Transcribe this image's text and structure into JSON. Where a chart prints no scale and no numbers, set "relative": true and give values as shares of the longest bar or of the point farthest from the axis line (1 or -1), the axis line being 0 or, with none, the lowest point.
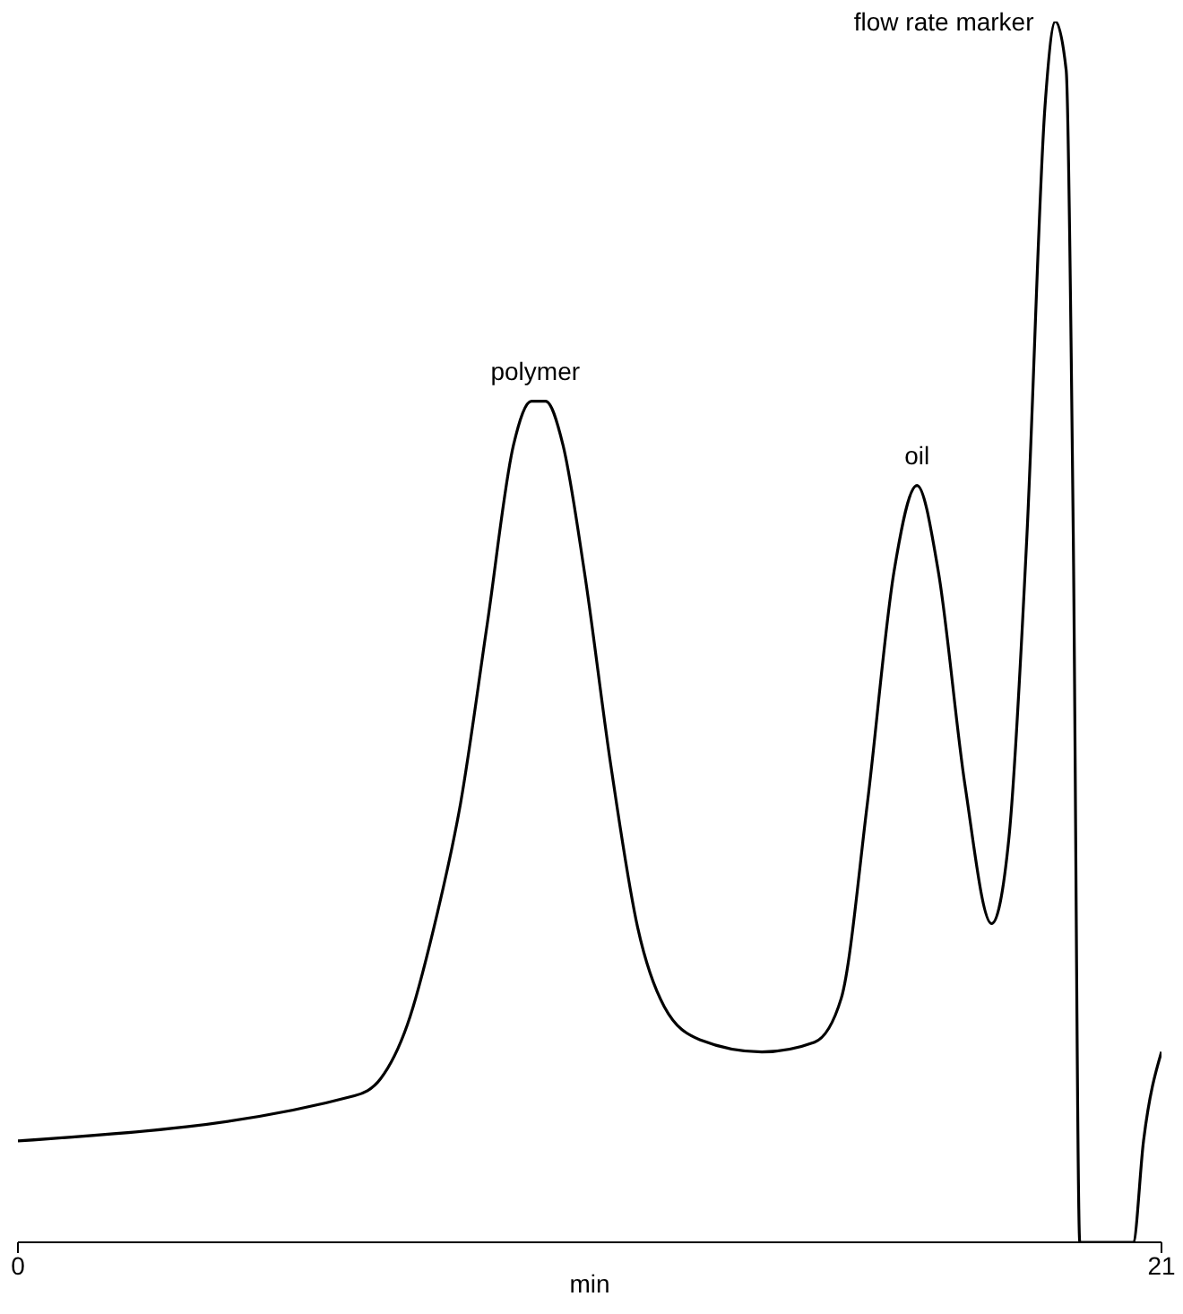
{
  "chart_data": {
    "type": "line",
    "relative": true,
    "xlabel": "min",
    "xlim": [
      0,
      21
    ],
    "xticks": [
      0,
      21
    ],
    "grid": false,
    "tick_labels": "x",
    "marker": "none",
    "color": "#000000",
    "x": [
      0,
      6.18,
      6.66,
      7.15,
      7.64,
      8.13,
      8.62,
      9.1,
      9.43,
      9.69,
      10.01,
      10.4,
      10.89,
      11.38,
      11.87,
      12.52,
      13.66,
      14.63,
      15.12,
      15.6,
      16.09,
      16.51,
      16.9,
      17.39,
      17.88,
      18.2,
      18.53,
      18.86,
      19.05,
      19.25,
      19.38,
      19.5,
      20.48,
      20.67,
      21
    ],
    "values": [
      0.083,
      0.12,
      0.134,
      0.178,
      0.258,
      0.36,
      0.507,
      0.653,
      0.689,
      0.689,
      0.653,
      0.55,
      0.39,
      0.258,
      0.193,
      0.166,
      0.156,
      0.164,
      0.2,
      0.36,
      0.55,
      0.62,
      0.55,
      0.375,
      0.261,
      0.332,
      0.58,
      0.93,
      1,
      0.96,
      0.58,
      0,
      0,
      0.083,
      0.156
    ],
    "annotations": [
      {
        "text": "polymer",
        "x": 9.5,
        "y": 0.689
      },
      {
        "text": "oil",
        "x": 16.51,
        "y": 0.62
      },
      {
        "text": "flow rate marker",
        "x": 19.05,
        "y": 1
      }
    ]
  }
}
